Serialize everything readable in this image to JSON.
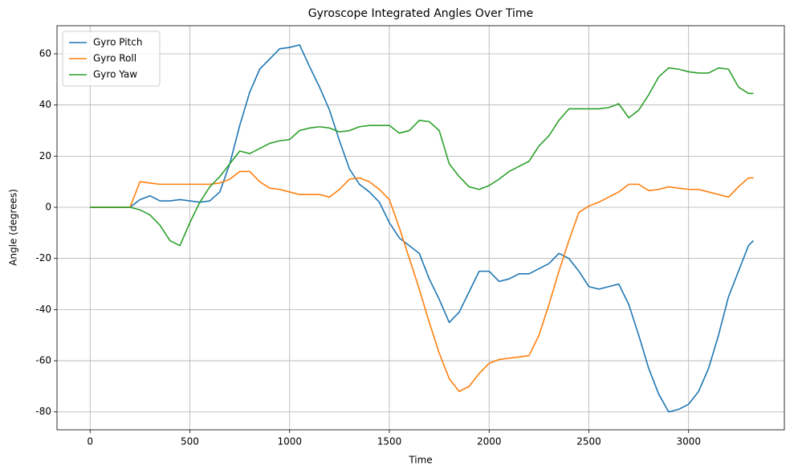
{
  "chart_data": {
    "type": "line",
    "title": "Gyroscope Integrated Angles Over Time",
    "x_label": "Time",
    "y_label": "Angle (degrees)",
    "x": [
      0,
      50,
      100,
      150,
      200,
      250,
      300,
      350,
      400,
      450,
      500,
      550,
      600,
      650,
      700,
      750,
      800,
      850,
      900,
      950,
      1000,
      1050,
      1100,
      1150,
      1200,
      1250,
      1300,
      1350,
      1400,
      1450,
      1500,
      1550,
      1600,
      1650,
      1700,
      1750,
      1800,
      1850,
      1900,
      1950,
      2000,
      2050,
      2100,
      2150,
      2200,
      2250,
      2300,
      2350,
      2400,
      2450,
      2500,
      2550,
      2600,
      2650,
      2700,
      2750,
      2800,
      2850,
      2900,
      2950,
      3000,
      3050,
      3100,
      3150,
      3200,
      3250,
      3300,
      3325
    ],
    "series": [
      {
        "name": "Gyro Pitch",
        "color": "#1f77b4",
        "values": [
          0,
          0,
          0,
          0,
          0,
          3,
          4.5,
          2.5,
          2.5,
          3,
          2.5,
          2,
          2.5,
          6,
          17,
          32,
          45,
          54,
          58,
          62,
          62.5,
          63.5,
          55,
          47,
          38,
          26,
          15,
          9,
          6,
          2,
          -6,
          -12,
          -15,
          -18,
          -28,
          -36,
          -45,
          -41,
          -33,
          -25,
          -25,
          -29,
          -28,
          -26,
          -26,
          -24,
          -22,
          -18,
          -20,
          -25,
          -31,
          -32,
          -31,
          -30,
          -38,
          -50,
          -63,
          -73,
          -80,
          -79,
          -77,
          -72,
          -63,
          -50,
          -35,
          -25,
          -15,
          -13
        ]
      },
      {
        "name": "Gyro Roll",
        "color": "#ff7f0e",
        "values": [
          0,
          0,
          0,
          0,
          0,
          10,
          9.5,
          9,
          9,
          9,
          9,
          9,
          9,
          9.5,
          11,
          14,
          14,
          10,
          7.5,
          7,
          6,
          5,
          5,
          5,
          4,
          7,
          11,
          11.5,
          10,
          7,
          3,
          -8,
          -20,
          -32,
          -45,
          -57,
          -67,
          -72,
          -70,
          -65,
          -61,
          -59.5,
          -59,
          -58.5,
          -58,
          -50,
          -38,
          -25,
          -13,
          -2,
          0.5,
          2,
          4,
          6,
          9,
          9,
          6.5,
          7,
          8,
          7.5,
          7,
          7,
          6,
          5,
          4,
          8,
          11.5,
          11.5
        ]
      },
      {
        "name": "Gyro Yaw",
        "color": "#2ca02c",
        "values": [
          0,
          0,
          0,
          0,
          0,
          -1,
          -3,
          -7,
          -13,
          -15,
          -6,
          2,
          8,
          12,
          17,
          22,
          21,
          23,
          25,
          26,
          26.5,
          30,
          31,
          31.5,
          31,
          29.5,
          30,
          31.5,
          32,
          32,
          32,
          29,
          30,
          34,
          33.5,
          30,
          17,
          12,
          8,
          7,
          8.5,
          11,
          14,
          16,
          18,
          24,
          28,
          34,
          38.5,
          38.5,
          38.5,
          38.5,
          39,
          40.5,
          35,
          38,
          44,
          51,
          54.5,
          54,
          53,
          52.5,
          52.5,
          54.5,
          54,
          47,
          44.5,
          44.5
        ]
      }
    ],
    "xlim": [
      -166,
      3480
    ],
    "ylim": [
      -87,
      71
    ],
    "xticks": [
      0,
      500,
      1000,
      1500,
      2000,
      2500,
      3000
    ],
    "yticks": [
      -80,
      -60,
      -40,
      -20,
      0,
      20,
      40,
      60
    ],
    "grid": true,
    "legend": "upper left"
  }
}
